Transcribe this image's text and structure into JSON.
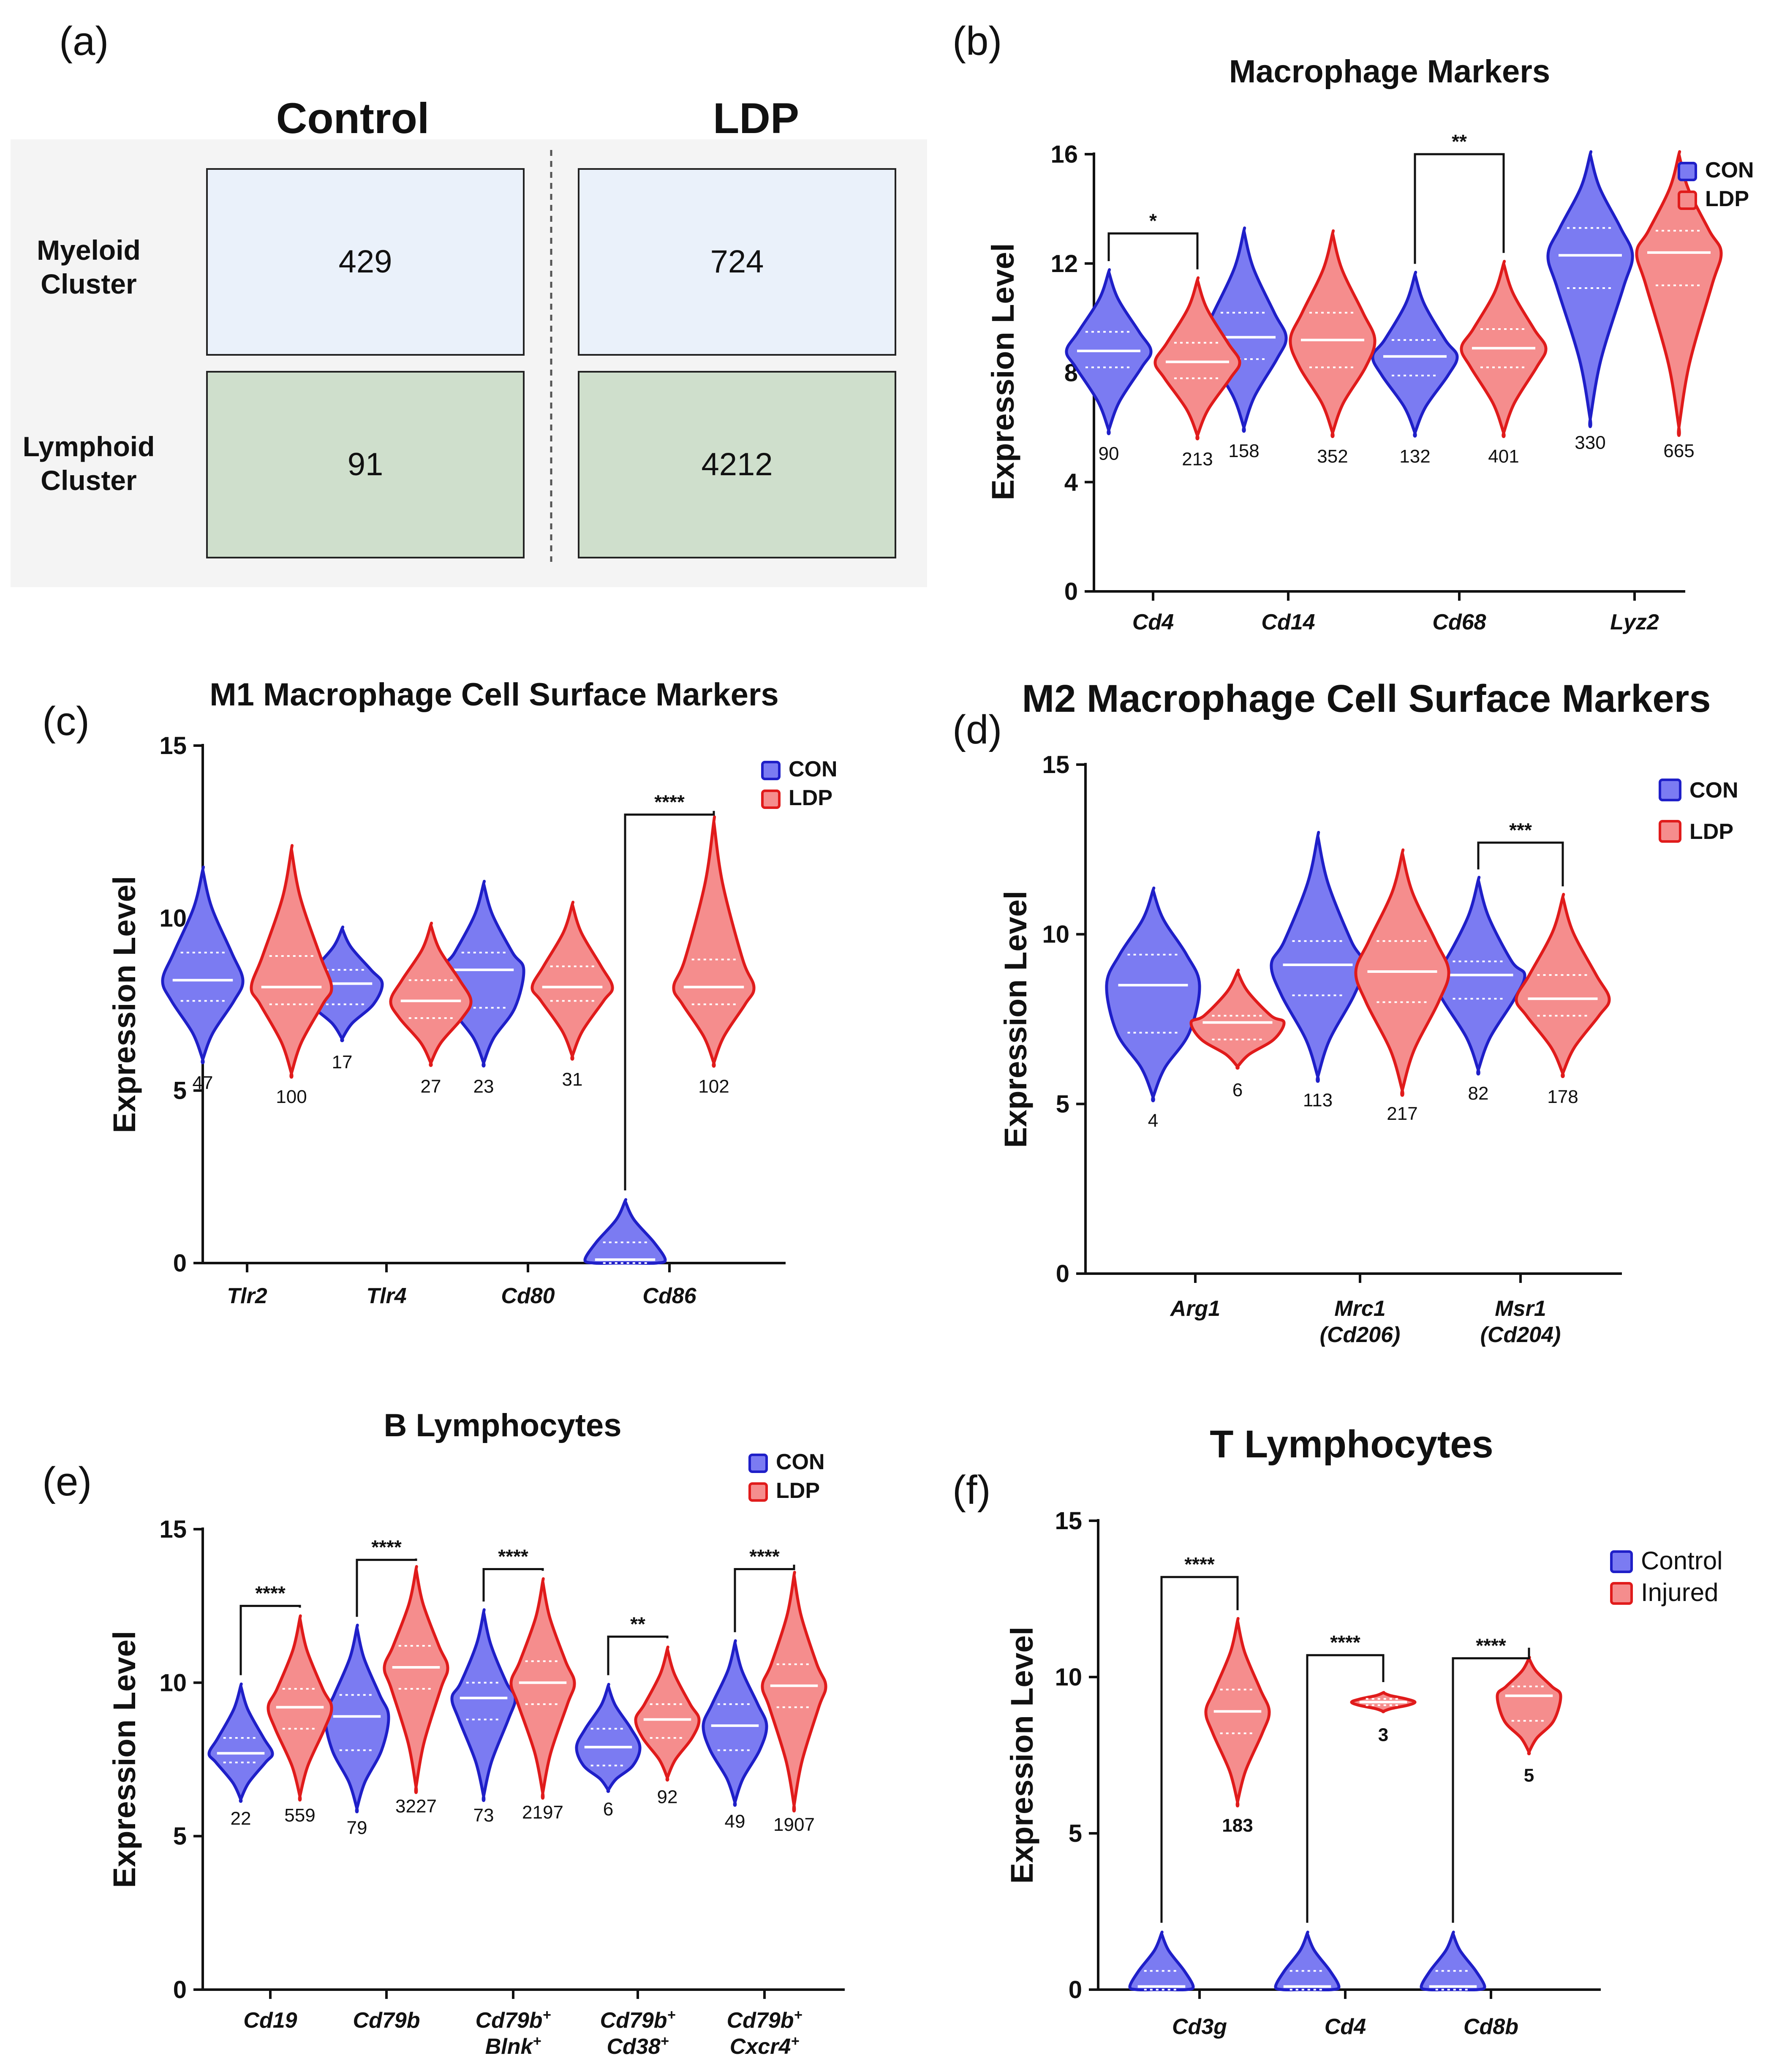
{
  "colors": {
    "con_fill": "#7b7bf2",
    "con_stroke": "#1f1fc8",
    "ldp_fill": "#f58d8d",
    "ldp_stroke": "#e01b1b",
    "myeloid_box": "#eaf1fa",
    "lymphoid_box": "#cfdfcc",
    "panel_a_bg": "#f4f4f4"
  },
  "panel_a": {
    "letter": "(a)",
    "col_headers": [
      "Control",
      "LDP"
    ],
    "row_labels": [
      [
        "Myeloid",
        "Cluster"
      ],
      [
        "Lymphoid",
        "Cluster"
      ]
    ],
    "cells": [
      [
        "429",
        "724"
      ],
      [
        "91",
        "4212"
      ]
    ]
  },
  "chart_data": [
    {
      "id": "b",
      "letter": "(b)",
      "type": "violin",
      "title": "Macrophage Markers",
      "ylabel": "Expression Level",
      "ylim": [
        0,
        16
      ],
      "yticks": [
        0,
        4,
        8,
        12,
        16
      ],
      "legend": [
        "CON",
        "LDP"
      ],
      "categories": [
        [
          "Cd4"
        ],
        [
          "Cd14"
        ],
        [
          "Cd68"
        ],
        [
          "Lyz2"
        ]
      ],
      "series": [
        {
          "name": "CON",
          "values": [
            {
              "median": 8.8,
              "min": 5.9,
              "max": 11.7,
              "q1": 8.2,
              "q3": 9.5,
              "n": "90"
            },
            {
              "median": 9.3,
              "min": 6.0,
              "max": 13.2,
              "q1": 8.5,
              "q3": 10.2,
              "n": "158"
            },
            {
              "median": 8.6,
              "min": 5.8,
              "max": 11.6,
              "q1": 7.9,
              "q3": 9.2,
              "n": "132"
            },
            {
              "median": 12.3,
              "min": 6.3,
              "max": 16.0,
              "q1": 11.1,
              "q3": 13.3,
              "n": "330"
            }
          ]
        },
        {
          "name": "LDP",
          "values": [
            {
              "median": 8.4,
              "min": 5.7,
              "max": 11.4,
              "q1": 7.8,
              "q3": 9.1,
              "n": "213"
            },
            {
              "median": 9.2,
              "min": 5.8,
              "max": 13.1,
              "q1": 8.2,
              "q3": 10.2,
              "n": "352"
            },
            {
              "median": 8.9,
              "min": 5.8,
              "max": 12.0,
              "q1": 8.2,
              "q3": 9.6,
              "n": "401"
            },
            {
              "median": 12.4,
              "min": 6.0,
              "max": 16.0,
              "q1": 11.2,
              "q3": 13.2,
              "n": "665"
            }
          ]
        }
      ],
      "significance": [
        {
          "category": 0,
          "label": "*",
          "height": 13.1
        },
        {
          "category": 2,
          "label": "**",
          "height": 16.0
        }
      ]
    },
    {
      "id": "c",
      "letter": "(c)",
      "type": "violin",
      "title": "M1 Macrophage Cell Surface Markers",
      "ylabel": "Expression Level",
      "ylim": [
        0,
        15
      ],
      "yticks": [
        0,
        5,
        10,
        15
      ],
      "legend": [
        "CON",
        "LDP"
      ],
      "categories": [
        [
          "Tlr2"
        ],
        [
          "Tlr4"
        ],
        [
          "Cd80"
        ],
        [
          "Cd86"
        ]
      ],
      "series": [
        {
          "name": "CON",
          "values": [
            {
              "median": 8.2,
              "min": 5.9,
              "max": 11.4,
              "q1": 7.6,
              "q3": 9.0,
              "n": "47"
            },
            {
              "median": 8.1,
              "min": 6.5,
              "max": 9.7,
              "q1": 7.5,
              "q3": 8.5,
              "n": "17"
            },
            {
              "median": 8.5,
              "min": 5.8,
              "max": 11.0,
              "q1": 7.4,
              "q3": 9.0,
              "n": "23"
            },
            {
              "median": 0.1,
              "min": 0.0,
              "max": 1.8,
              "q1": 0.0,
              "q3": 0.6,
              "n": ""
            }
          ]
        },
        {
          "name": "LDP",
          "values": [
            {
              "median": 8.0,
              "min": 5.5,
              "max": 12.0,
              "q1": 7.5,
              "q3": 8.9,
              "n": "100"
            },
            {
              "median": 7.6,
              "min": 5.8,
              "max": 9.8,
              "q1": 7.1,
              "q3": 8.2,
              "n": "27"
            },
            {
              "median": 8.0,
              "min": 6.0,
              "max": 10.4,
              "q1": 7.6,
              "q3": 8.6,
              "n": "31"
            },
            {
              "median": 8.0,
              "min": 5.8,
              "max": 12.8,
              "q1": 7.5,
              "q3": 8.8,
              "n": "102"
            }
          ]
        }
      ],
      "significance": [
        {
          "category": 3,
          "label": "****",
          "height": 13.0
        }
      ]
    },
    {
      "id": "d",
      "letter": "(d)",
      "type": "violin",
      "title": "M2 Macrophage Cell Surface Markers",
      "ylabel": "Expression Level",
      "ylim": [
        0,
        15
      ],
      "yticks": [
        0,
        5,
        10,
        15
      ],
      "legend": [
        "CON",
        "LDP"
      ],
      "categories": [
        [
          "Arg1"
        ],
        [
          "Mrc1",
          "(Cd206)"
        ],
        [
          "Msr1",
          "(Cd204)"
        ]
      ],
      "series": [
        {
          "name": "CON",
          "values": [
            {
              "median": 8.5,
              "min": 5.2,
              "max": 11.3,
              "q1": 7.1,
              "q3": 9.4,
              "n": "4"
            },
            {
              "median": 9.1,
              "min": 5.8,
              "max": 12.9,
              "q1": 8.2,
              "q3": 9.8,
              "n": "113"
            },
            {
              "median": 8.8,
              "min": 6.0,
              "max": 11.6,
              "q1": 8.1,
              "q3": 9.2,
              "n": "82"
            }
          ]
        },
        {
          "name": "LDP",
          "values": [
            {
              "median": 7.4,
              "min": 6.1,
              "max": 8.9,
              "q1": 6.9,
              "q3": 7.6,
              "n": "6"
            },
            {
              "median": 8.9,
              "min": 5.4,
              "max": 12.4,
              "q1": 8.0,
              "q3": 9.8,
              "n": "217"
            },
            {
              "median": 8.1,
              "min": 5.9,
              "max": 11.1,
              "q1": 7.6,
              "q3": 8.8,
              "n": "178"
            }
          ]
        }
      ],
      "significance": [
        {
          "category": 2,
          "label": "***",
          "height": 12.7
        }
      ]
    },
    {
      "id": "e",
      "letter": "(e)",
      "type": "violin",
      "title": "B Lymphocytes",
      "ylabel": "Expression Level",
      "ylim": [
        0,
        15
      ],
      "yticks": [
        0,
        5,
        10,
        15
      ],
      "legend": [
        "CON",
        "LDP"
      ],
      "categories": [
        [
          "Cd19"
        ],
        [
          "Cd79b"
        ],
        [
          "Cd79b+",
          "Blnk+"
        ],
        [
          "Cd79b+",
          "Cd38+"
        ],
        [
          "Cd79b+",
          "Cxcr4+"
        ]
      ],
      "series": [
        {
          "name": "CON",
          "values": [
            {
              "median": 7.7,
              "min": 6.2,
              "max": 9.9,
              "q1": 7.4,
              "q3": 8.2,
              "n": "22"
            },
            {
              "median": 8.9,
              "min": 5.9,
              "max": 11.8,
              "q1": 7.8,
              "q3": 9.6,
              "n": "79"
            },
            {
              "median": 9.5,
              "min": 6.3,
              "max": 12.3,
              "q1": 8.8,
              "q3": 10.0,
              "n": "73"
            },
            {
              "median": 7.9,
              "min": 6.5,
              "max": 9.9,
              "q1": 7.3,
              "q3": 8.5,
              "n": "6"
            },
            {
              "median": 8.6,
              "min": 6.1,
              "max": 11.3,
              "q1": 7.8,
              "q3": 9.3,
              "n": "49"
            }
          ]
        },
        {
          "name": "LDP",
          "values": [
            {
              "median": 9.2,
              "min": 6.3,
              "max": 12.1,
              "q1": 8.5,
              "q3": 9.8,
              "n": "559"
            },
            {
              "median": 10.5,
              "min": 6.6,
              "max": 13.7,
              "q1": 9.8,
              "q3": 11.2,
              "n": "3227"
            },
            {
              "median": 10.0,
              "min": 6.4,
              "max": 13.3,
              "q1": 9.3,
              "q3": 10.7,
              "n": "2197"
            },
            {
              "median": 8.8,
              "min": 6.9,
              "max": 11.1,
              "q1": 8.2,
              "q3": 9.3,
              "n": "92"
            },
            {
              "median": 9.9,
              "min": 6.0,
              "max": 13.5,
              "q1": 9.2,
              "q3": 10.6,
              "n": "1907"
            }
          ]
        }
      ],
      "significance": [
        {
          "category": 0,
          "label": "****",
          "height": 12.5
        },
        {
          "category": 1,
          "label": "****",
          "height": 14.0
        },
        {
          "category": 2,
          "label": "****",
          "height": 13.7
        },
        {
          "category": 3,
          "label": "**",
          "height": 11.5
        },
        {
          "category": 4,
          "label": "****",
          "height": 13.7
        }
      ]
    },
    {
      "id": "f",
      "letter": "(f)",
      "type": "violin",
      "title": "T Lymphocytes",
      "ylabel": "Expression Level",
      "ylim": [
        0,
        15
      ],
      "yticks": [
        0,
        5,
        10,
        15
      ],
      "legend": [
        "Control",
        "Injured"
      ],
      "categories": [
        [
          "Cd3g"
        ],
        [
          "Cd4"
        ],
        [
          "Cd8b"
        ]
      ],
      "series": [
        {
          "name": "Control",
          "values": [
            {
              "median": 0.1,
              "min": 0.0,
              "max": 1.8,
              "q1": 0.0,
              "q3": 0.6,
              "n": ""
            },
            {
              "median": 0.1,
              "min": 0.0,
              "max": 1.8,
              "q1": 0.0,
              "q3": 0.6,
              "n": ""
            },
            {
              "median": 0.1,
              "min": 0.0,
              "max": 1.8,
              "q1": 0.0,
              "q3": 0.6,
              "n": ""
            }
          ]
        },
        {
          "name": "Injured",
          "values": [
            {
              "median": 8.9,
              "min": 6.0,
              "max": 11.8,
              "q1": 8.2,
              "q3": 9.6,
              "n": "183"
            },
            {
              "median": 9.2,
              "min": 8.9,
              "max": 9.5,
              "q1": 9.1,
              "q3": 9.3,
              "n": "3"
            },
            {
              "median": 9.4,
              "min": 7.6,
              "max": 10.6,
              "q1": 8.6,
              "q3": 9.7,
              "n": "5"
            }
          ]
        }
      ],
      "significance": [
        {
          "category": 0,
          "label": "****",
          "height": 13.2
        },
        {
          "category": 1,
          "label": "****",
          "height": 10.7
        },
        {
          "category": 2,
          "label": "****",
          "height": 10.6
        }
      ]
    }
  ]
}
